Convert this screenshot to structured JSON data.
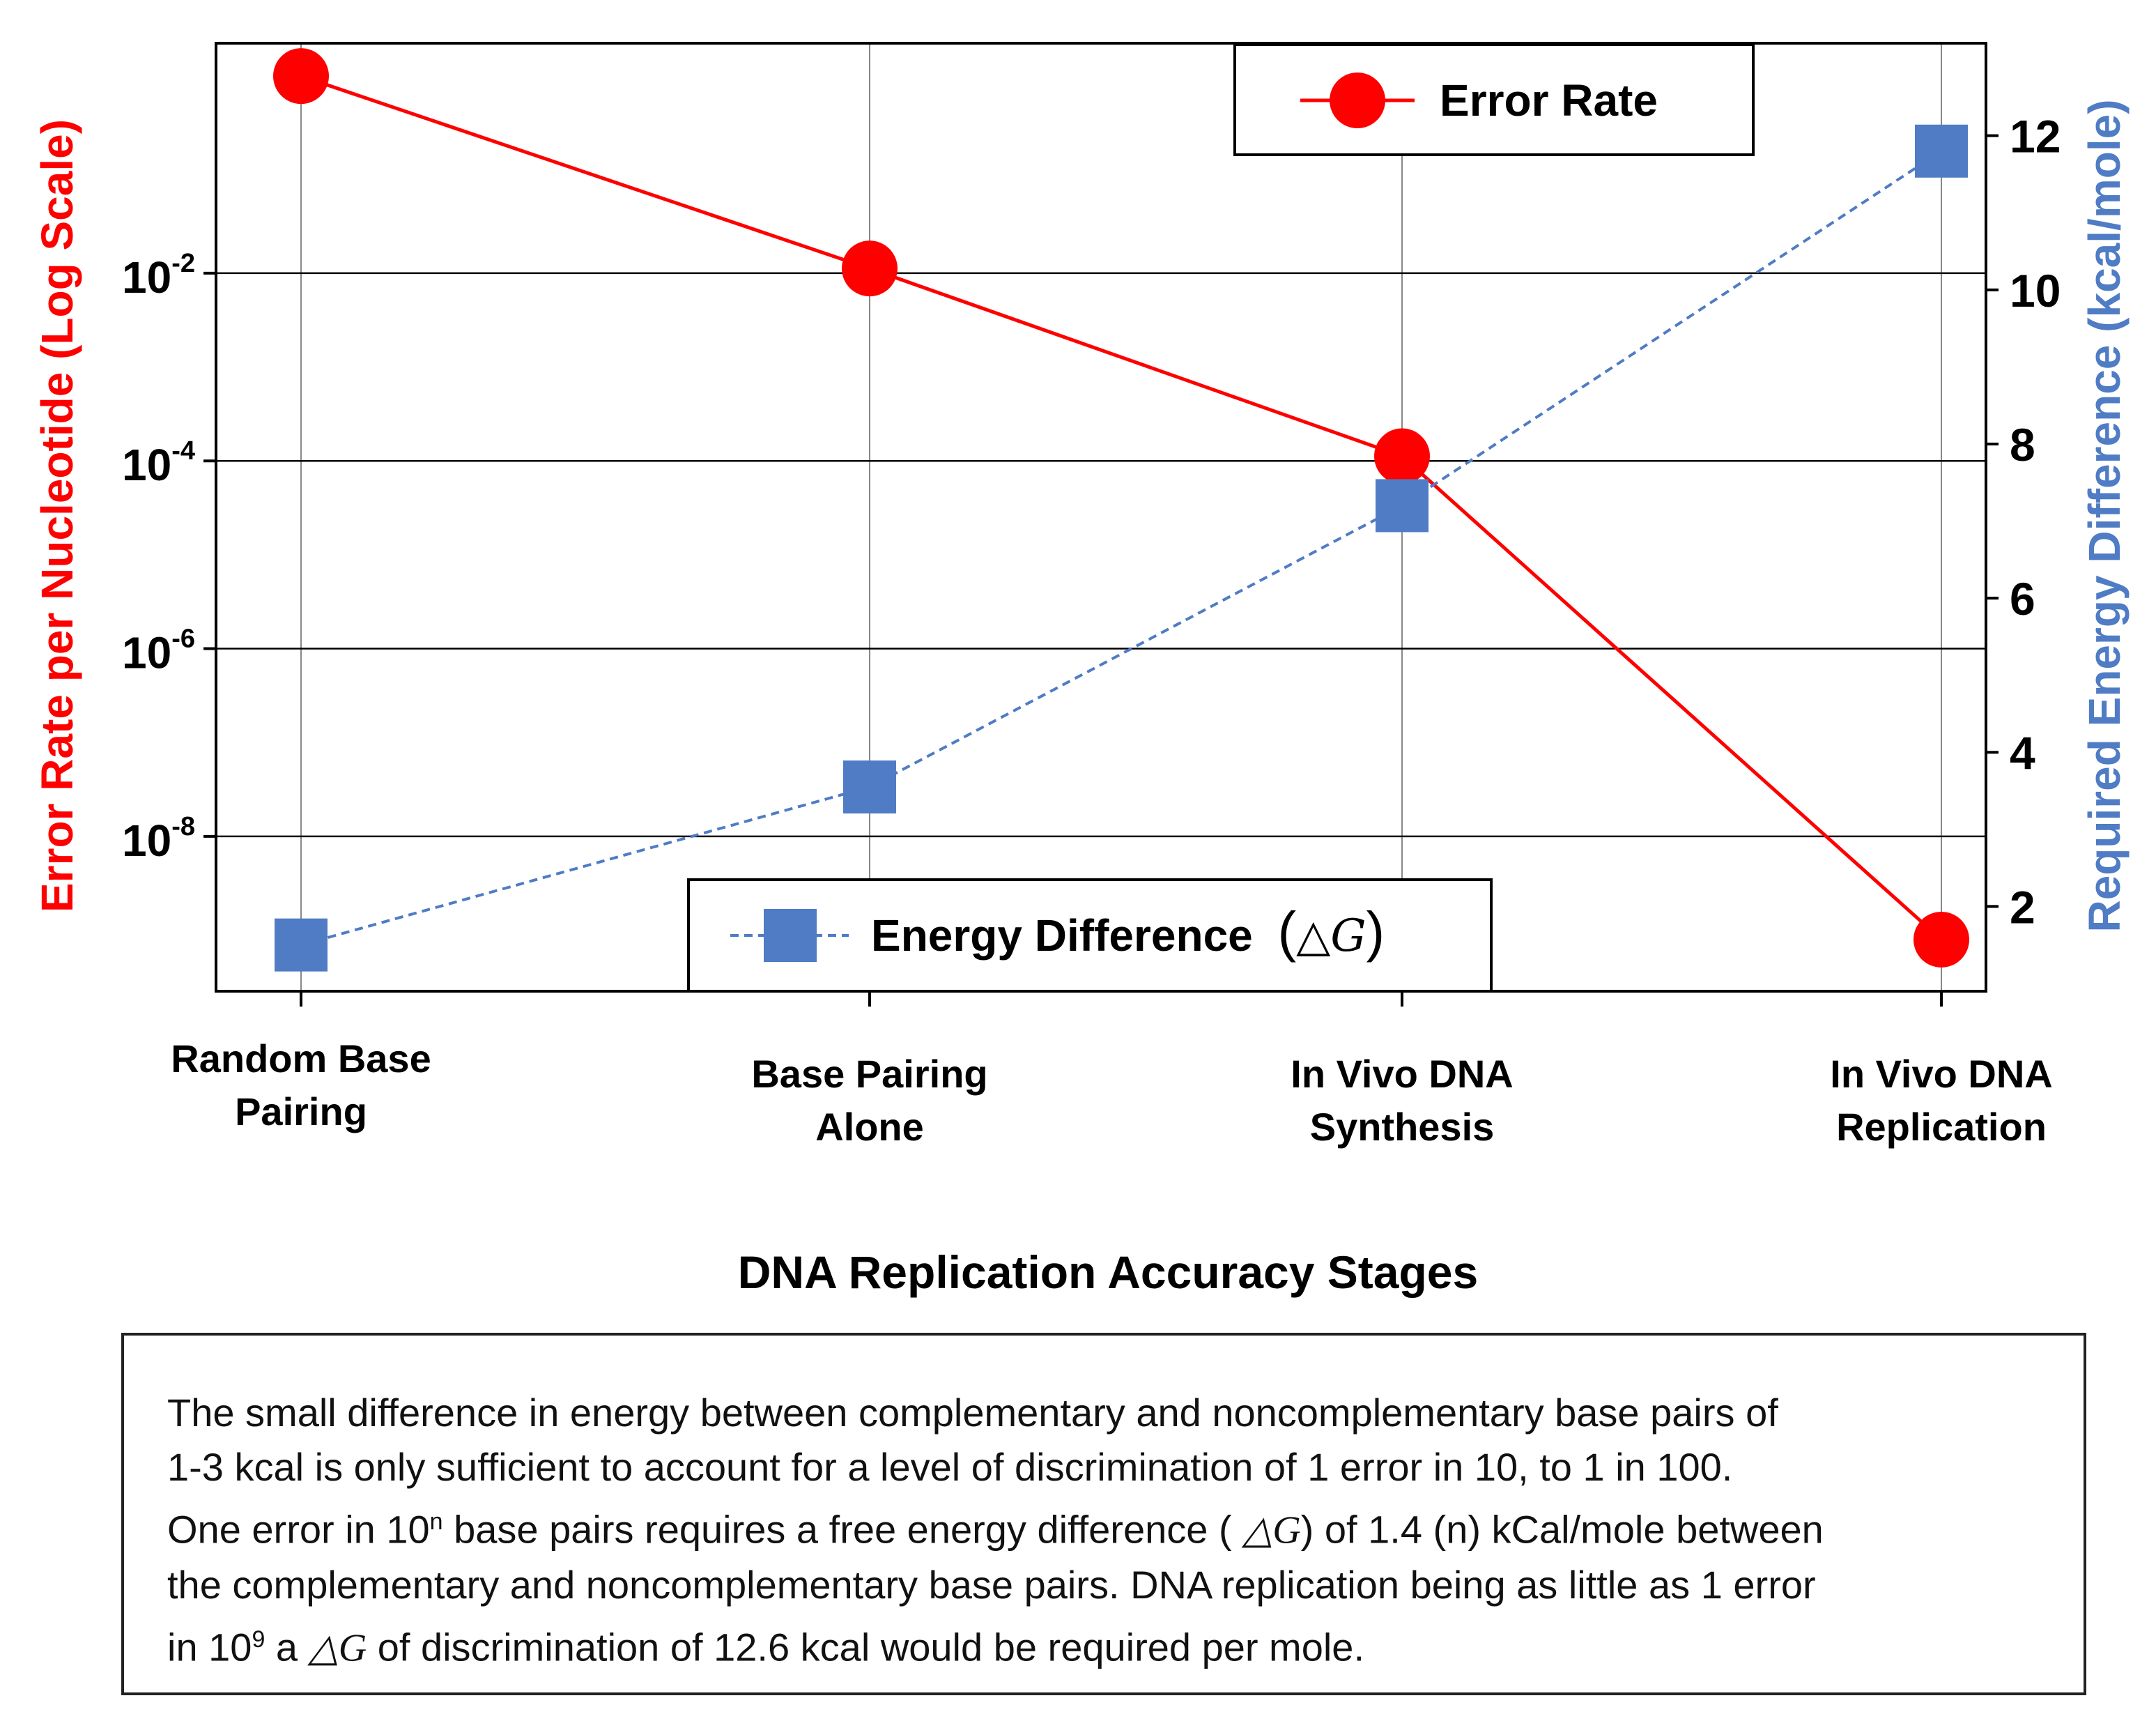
{
  "chart_data": {
    "type": "line",
    "title": "",
    "xlabel": "DNA Replication Accuracy Stages",
    "categories": [
      [
        "Random Base",
        "Pairing"
      ],
      [
        "Base Pairing",
        "Alone"
      ],
      [
        "In Vivo DNA",
        "Synthesis"
      ],
      [
        "In Vivo DNA",
        "Replication"
      ]
    ],
    "y_left": {
      "label": "Error Rate per Nucleotide (Log Scale)",
      "scale": "log",
      "range_log10": [
        -9.65,
        0.45
      ],
      "ticks_log10": [
        -2,
        -4,
        -6,
        -8
      ],
      "tick_base": "10",
      "tick_exponents": [
        "-2",
        "-4",
        "-6",
        "-8"
      ],
      "color": "#ff0000"
    },
    "y_right": {
      "label": "Required Energy Difference (kcal/mole)",
      "range": [
        0.9,
        13.2
      ],
      "ticks": [
        2,
        4,
        6,
        8,
        10,
        12
      ],
      "tick_labels": [
        "2",
        "4",
        "6",
        "8",
        "10",
        "12"
      ],
      "color": "#4f7cc4"
    },
    "series": [
      {
        "name": "Error Rate",
        "axis": "left",
        "marker": "circle",
        "color": "#ff0000",
        "values_log10": [
          0.1,
          -1.95,
          -3.95,
          -9.1
        ],
        "values": [
          1.26,
          0.0112,
          0.000112,
          7.9e-10
        ]
      },
      {
        "name": "Energy Difference (△G)",
        "axis": "right",
        "marker": "square",
        "color": "#4f7cc4",
        "values": [
          1.5,
          3.55,
          7.2,
          11.8
        ]
      }
    ],
    "legend": [
      {
        "series": 0,
        "label": "Error Rate",
        "placement": "top-right"
      },
      {
        "series": 1,
        "label_text": "Energy Difference",
        "label_symbol": "△G",
        "placement": "bottom-center"
      }
    ],
    "grid": true
  },
  "note": {
    "text_lines": [
      "The small difference in energy between complementary and noncomplementary base pairs of",
      "1-3 kcal is only sufficient to account for a level of discrimination of 1 error in 10, to 1 in 100."
    ],
    "line3_a": "One error in 10",
    "line3_sup": "n",
    "line3_b": " base pairs requires a free energy difference ( ",
    "line3_sym": "△G",
    "line3_c": ") of 1.4 (n) kCal/mole between",
    "line4": "the complementary and noncomplementary base pairs. DNA replication being as little as 1 error",
    "line5_a": "in 10",
    "line5_sup": "9",
    "line5_b": " a ",
    "line5_sym": "△G",
    "line5_c": " of discrimination of 12.6 kcal would be required per mole."
  }
}
